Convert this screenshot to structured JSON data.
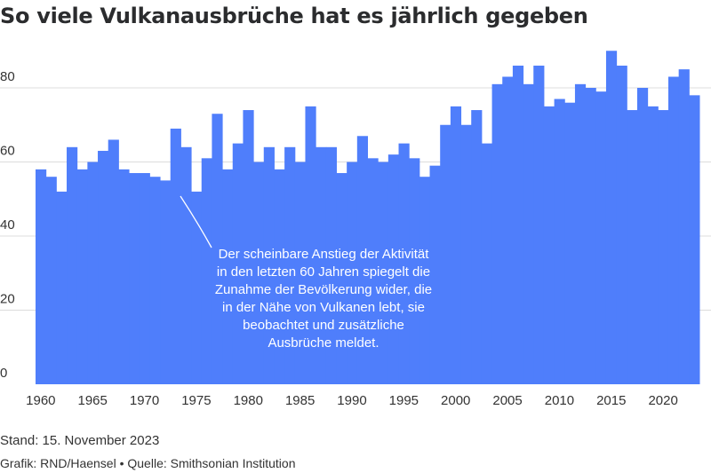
{
  "chart_data": {
    "type": "bar",
    "title": "So viele Vulkanausbrüche hat es jährlich gegeben",
    "xlabel": "",
    "ylabel": "",
    "x": [
      1960,
      1961,
      1962,
      1963,
      1964,
      1965,
      1966,
      1967,
      1968,
      1969,
      1970,
      1971,
      1972,
      1973,
      1974,
      1975,
      1976,
      1977,
      1978,
      1979,
      1980,
      1981,
      1982,
      1983,
      1984,
      1985,
      1986,
      1987,
      1988,
      1989,
      1990,
      1991,
      1992,
      1993,
      1994,
      1995,
      1996,
      1997,
      1998,
      1999,
      2000,
      2001,
      2002,
      2003,
      2004,
      2005,
      2006,
      2007,
      2008,
      2009,
      2010,
      2011,
      2012,
      2013,
      2014,
      2015,
      2016,
      2017,
      2018,
      2019,
      2020,
      2021,
      2022,
      2023
    ],
    "values": [
      58,
      56,
      52,
      64,
      58,
      60,
      63,
      66,
      58,
      57,
      57,
      56,
      55,
      69,
      64,
      52,
      61,
      73,
      58,
      65,
      74,
      60,
      64,
      58,
      64,
      60,
      75,
      64,
      64,
      57,
      60,
      67,
      61,
      60,
      62,
      65,
      61,
      56,
      59,
      70,
      75,
      70,
      74,
      65,
      81,
      83,
      86,
      81,
      86,
      75,
      77,
      76,
      81,
      80,
      79,
      90,
      86,
      74,
      80,
      75,
      74,
      83,
      85,
      78
    ],
    "x_ticks": [
      "1960",
      "1965",
      "1970",
      "1975",
      "1980",
      "1985",
      "1990",
      "1995",
      "2000",
      "2005",
      "2010",
      "2015",
      "2020"
    ],
    "y_ticks": [
      "0",
      "20",
      "40",
      "60",
      "80"
    ],
    "ylim": [
      0,
      92
    ],
    "grid": true,
    "bar_color": "#4f7efb",
    "annotation": [
      "Der scheinbare Anstieg der Aktivität",
      "in den letzten 60 Jahren spiegelt die",
      "Zunahme der Bevölkerung wider, die",
      "in der Nähe von Vulkanen lebt, sie",
      "beobachtet und zusätzliche",
      "Ausbrüche meldet."
    ]
  },
  "footer": {
    "stand": "Stand: 15. November 2023",
    "credit": "Grafik: RND/Haensel • Quelle: Smithsonian Institution"
  }
}
